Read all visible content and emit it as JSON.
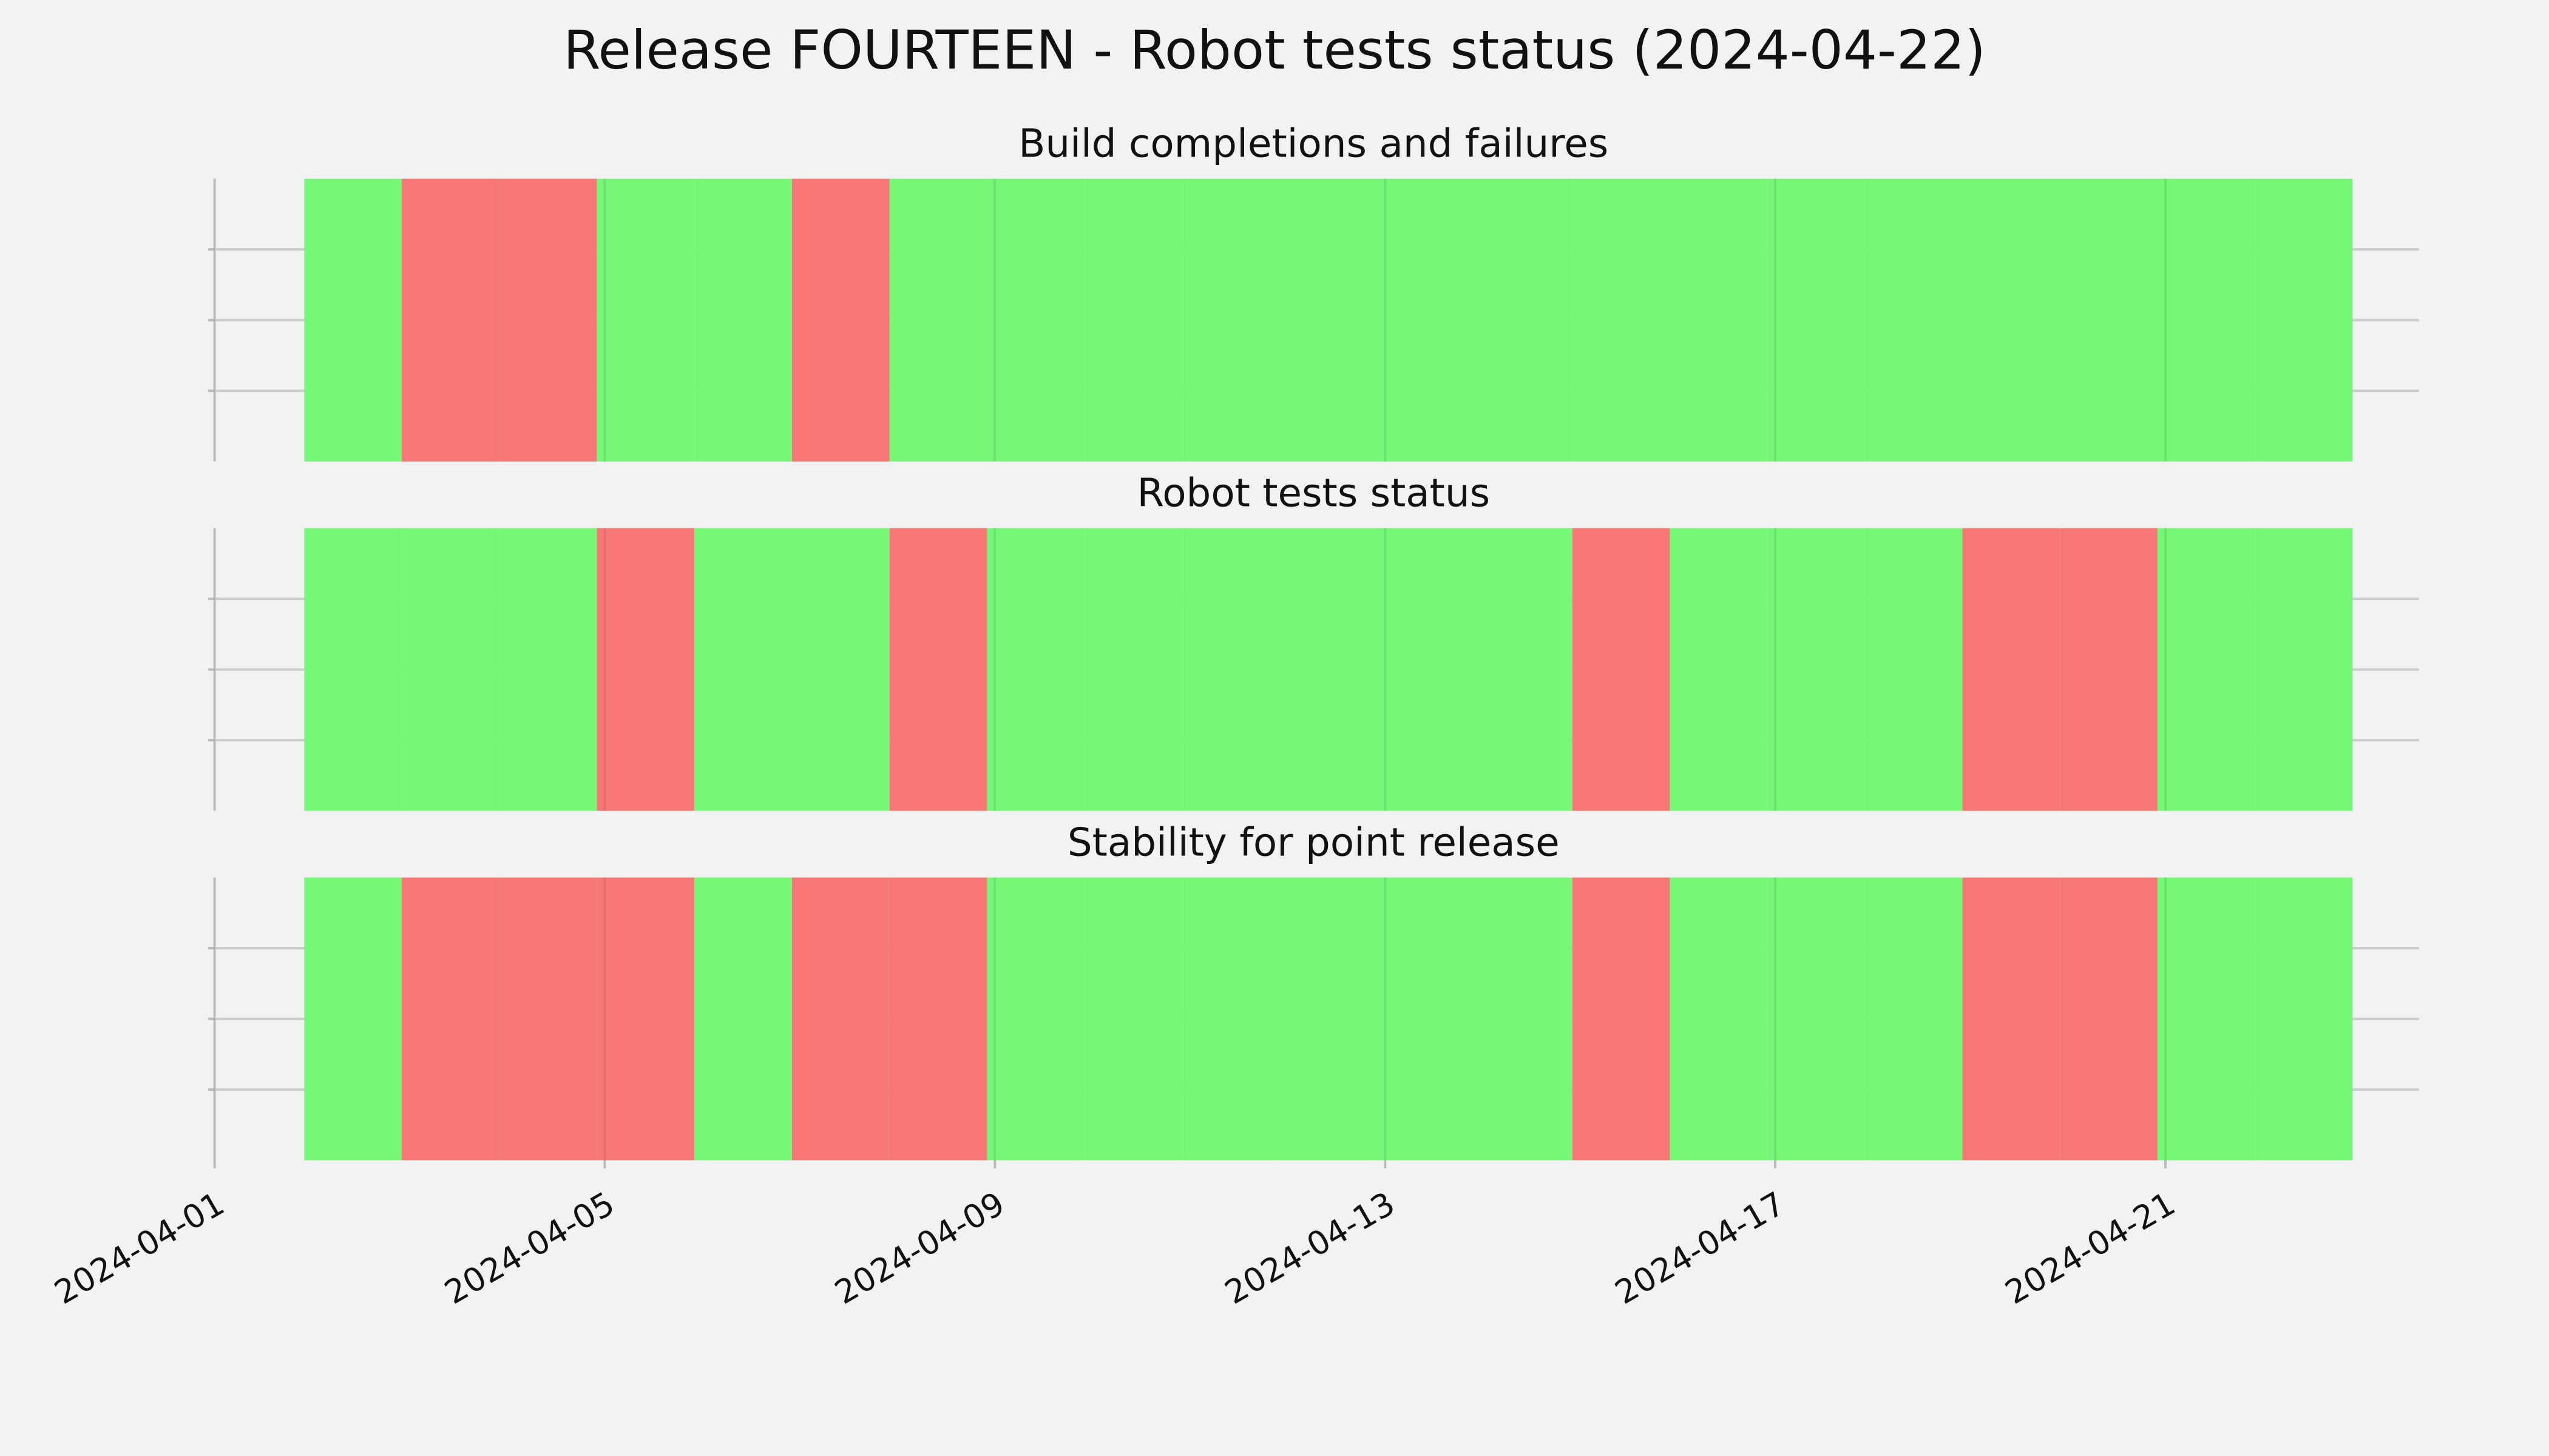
{
  "chart_data": {
    "type": "status-timeline",
    "title": "Release FOURTEEN - Robot tests status (2024-04-22)",
    "dates": [
      "2024-04-02",
      "2024-04-03",
      "2024-04-04",
      "2024-04-05",
      "2024-04-06",
      "2024-04-07",
      "2024-04-08",
      "2024-04-09",
      "2024-04-10",
      "2024-04-11",
      "2024-04-12",
      "2024-04-13",
      "2024-04-14",
      "2024-04-15",
      "2024-04-16",
      "2024-04-17",
      "2024-04-18",
      "2024-04-19",
      "2024-04-20",
      "2024-04-21",
      "2024-04-22"
    ],
    "xlim": [
      "2024-04-01",
      "2024-04-23"
    ],
    "xticks": [
      "2024-04-01",
      "2024-04-05",
      "2024-04-09",
      "2024-04-13",
      "2024-04-17",
      "2024-04-21"
    ],
    "ylim": [
      0,
      1
    ],
    "yticks": [
      0.25,
      0.5,
      0.75
    ],
    "grid": true,
    "panels": [
      {
        "title": "Build completions and failures",
        "colors": [
          "#77f777",
          "#f77777",
          "#f77777",
          "#77f777",
          "#77f777",
          "#f77777",
          "#77f777",
          "#77f777",
          "#77f777",
          "#77f777",
          "#77f777",
          "#77f777",
          "#77f777",
          "#77f777",
          "#77f777",
          "#77f777",
          "#77f777",
          "#77f777",
          "#77f777",
          "#77f777",
          "#77f777"
        ]
      },
      {
        "title": "Robot tests status",
        "colors": [
          "#77f777",
          "#77f777",
          "#77f777",
          "#f77777",
          "#77f777",
          "#77f777",
          "#f77777",
          "#77f777",
          "#77f777",
          "#77f777",
          "#77f777",
          "#77f777",
          "#77f777",
          "#f77777",
          "#77f777",
          "#77f777",
          "#77f777",
          "#f77777",
          "#f77777",
          "#77f777",
          "#77f777"
        ]
      },
      {
        "title": "Stability for point release",
        "colors": [
          "#77f777",
          "#f77777",
          "#f77777",
          "#f77777",
          "#77f777",
          "#f77777",
          "#f77777",
          "#77f777",
          "#77f777",
          "#77f777",
          "#77f777",
          "#77f777",
          "#77f777",
          "#f77777",
          "#77f777",
          "#77f777",
          "#77f777",
          "#f77777",
          "#f77777",
          "#77f777",
          "#77f777"
        ]
      }
    ]
  }
}
